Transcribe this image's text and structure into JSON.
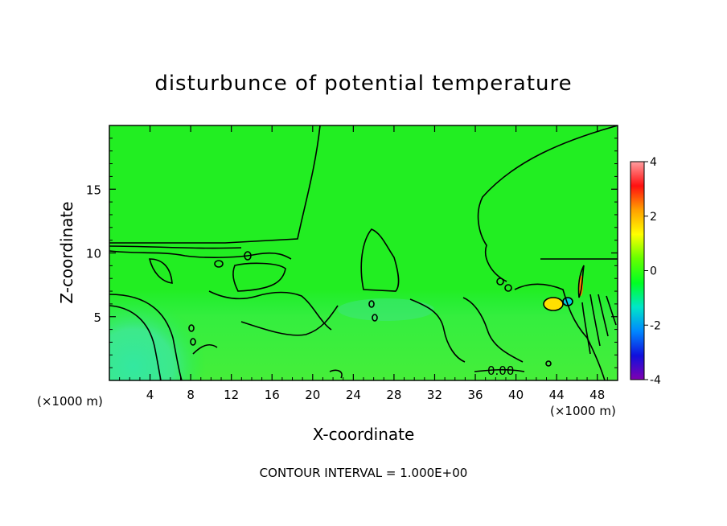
{
  "chart_data": {
    "type": "heatmap",
    "title": "disturbunce of potential temperature",
    "xlabel": "X-coordinate",
    "ylabel": "Z-coordinate",
    "x_unit": "(×1000 m)",
    "x_unit_right": "(×1000 m)",
    "xlim": [
      0,
      50
    ],
    "ylim": [
      0,
      20
    ],
    "x_ticks": [
      4,
      8,
      12,
      16,
      20,
      24,
      28,
      32,
      36,
      40,
      44,
      48
    ],
    "y_ticks": [
      5,
      10,
      15
    ],
    "colorbar": {
      "range": [
        -4,
        4
      ],
      "ticks": [
        4,
        2,
        0,
        -2,
        -4
      ],
      "colors": [
        "#ff9ea0",
        "#ff1010",
        "#ffa000",
        "#ffff00",
        "#66ff00",
        "#00ff22",
        "#00e6c8",
        "#0088ff",
        "#1010dd",
        "#8000b0"
      ]
    },
    "contour_interval_text": "CONTOUR INTERVAL = 1.000E+00",
    "contour_label": "0.00",
    "background_value": 0,
    "features": [
      {
        "name": "near-surface cool pool",
        "x": [
          0,
          6
        ],
        "z": [
          0,
          6
        ],
        "value": -0.8
      },
      {
        "name": "warm anomaly",
        "x": [
          43,
          46
        ],
        "z": [
          5,
          7
        ],
        "value": 2.0
      },
      {
        "name": "warm streak",
        "x": [
          46.5,
          47.5
        ],
        "z": [
          6,
          8
        ],
        "value": 3.0
      },
      {
        "name": "cool anomaly",
        "x": [
          44,
          47
        ],
        "z": [
          5,
          6.5
        ],
        "value": -1.2
      }
    ]
  }
}
